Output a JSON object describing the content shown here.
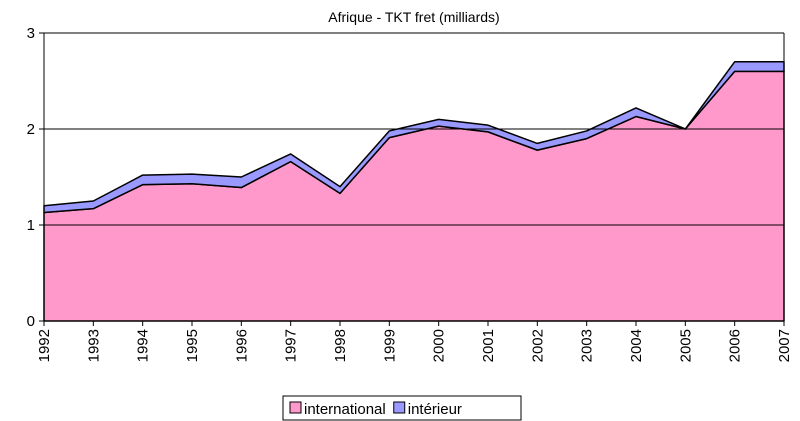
{
  "chart_data": {
    "type": "area",
    "stacked": true,
    "title": "Afrique - TKT fret (milliards)",
    "categories": [
      "1992",
      "1993",
      "1994",
      "1995",
      "1996",
      "1997",
      "1998",
      "1999",
      "2000",
      "2001",
      "2002",
      "2003",
      "2004",
      "2005",
      "2006",
      "2007"
    ],
    "series": [
      {
        "name": "international",
        "color": "#ff99cc",
        "values": [
          1.13,
          1.17,
          1.42,
          1.43,
          1.39,
          1.66,
          1.33,
          1.91,
          2.03,
          1.97,
          1.78,
          1.9,
          2.13,
          2.0,
          2.6,
          2.6
        ]
      },
      {
        "name": "intérieur",
        "color": "#9999ff",
        "values": [
          0.07,
          0.08,
          0.1,
          0.1,
          0.11,
          0.08,
          0.07,
          0.07,
          0.07,
          0.07,
          0.07,
          0.08,
          0.09,
          0.0,
          0.1,
          0.1
        ]
      }
    ],
    "ylim": [
      0,
      3
    ],
    "yticks": [
      0,
      1,
      2,
      3
    ],
    "grid": true,
    "legend": "bottom"
  }
}
